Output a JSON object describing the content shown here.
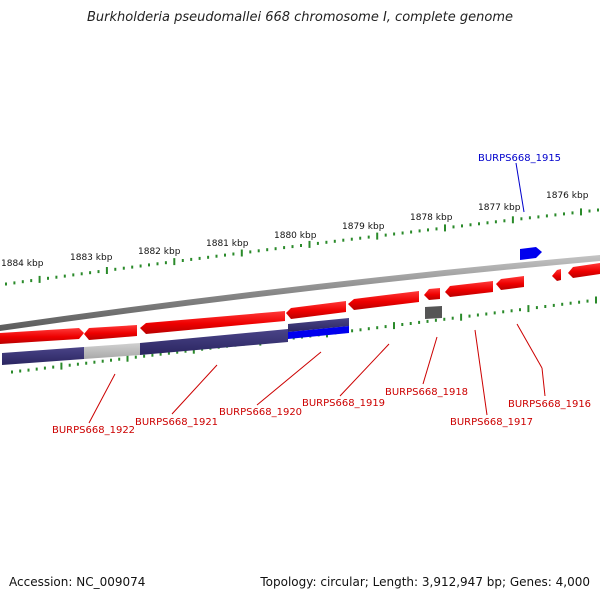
{
  "title": "Burkholderia pseudomallei 668 chromosome I, complete genome",
  "footer": {
    "accession": "Accession: NC_009074",
    "summary": "Topology: circular; Length: 3,912,947 bp; Genes: 4,000"
  },
  "colors": {
    "forward_gene": "#ee0000",
    "reverse_gene_dark": "#3a3475",
    "reverse_gene_light": "#bdbdbd",
    "selected_gene": "#0000ee",
    "backbone": "#8a8a8a",
    "ticks": "#2a8a2a",
    "label_red": "#cc0000",
    "label_blue": "#0000cc"
  },
  "scale_labels": [
    "1884 kbp",
    "1883 kbp",
    "1882 kbp",
    "1881 kbp",
    "1880 kbp",
    "1879 kbp",
    "1878 kbp",
    "1877 kbp",
    "1876 kbp"
  ],
  "gene_labels": [
    {
      "id": "g1915",
      "text": "BURPS668_1915",
      "color": "blue"
    },
    {
      "id": "g1916",
      "text": "BURPS668_1916",
      "color": "red"
    },
    {
      "id": "g1917",
      "text": "BURPS668_1917",
      "color": "red"
    },
    {
      "id": "g1918",
      "text": "BURPS668_1918",
      "color": "red"
    },
    {
      "id": "g1919",
      "text": "BURPS668_1919",
      "color": "red"
    },
    {
      "id": "g1920",
      "text": "BURPS668_1920",
      "color": "red"
    },
    {
      "id": "g1921",
      "text": "BURPS668_1921",
      "color": "red"
    },
    {
      "id": "g1922",
      "text": "BURPS668_1922",
      "color": "red"
    }
  ]
}
